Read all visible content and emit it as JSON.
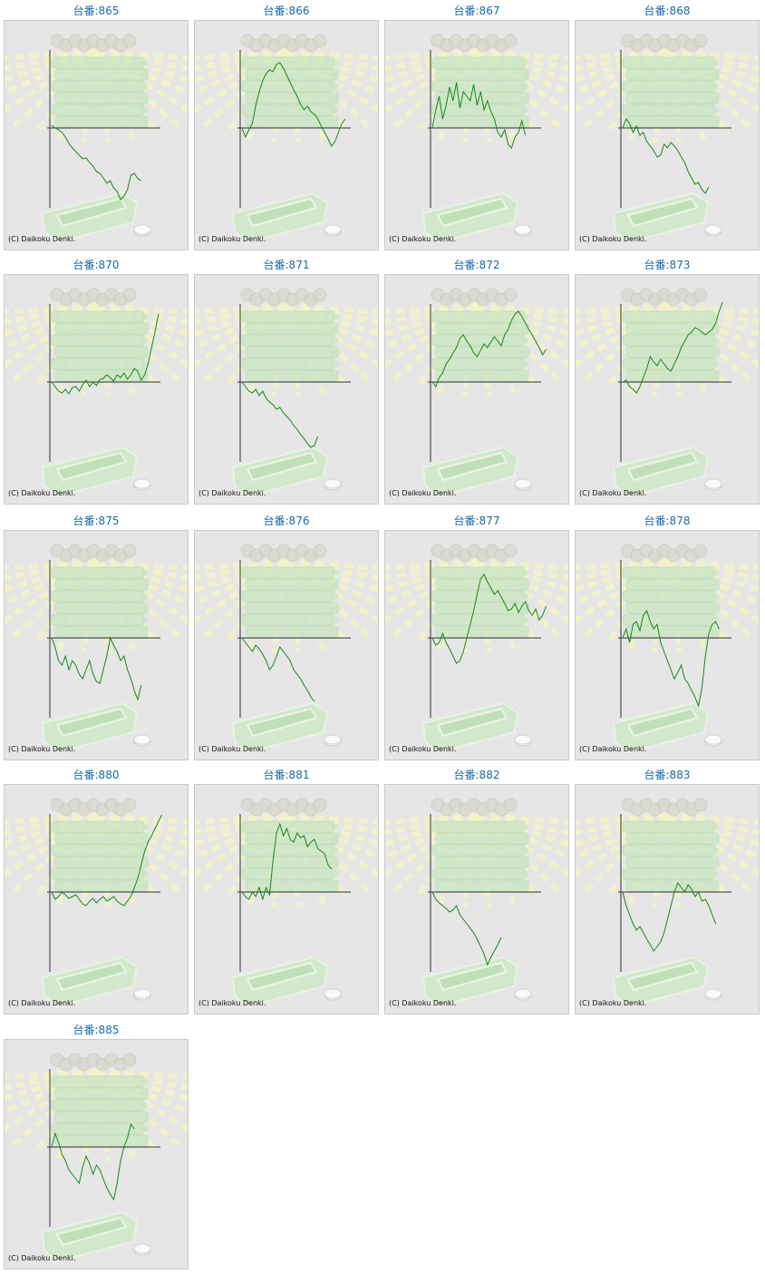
{
  "colors": {
    "title": "#1a6aa8",
    "line": "#138a13",
    "axis": "#333333",
    "bg": "#e6e6e6"
  },
  "machines": [
    {
      "label": "台番:865",
      "copyright": "(C) Daikoku Denki.",
      "chart_data": {
        "type": "line",
        "y": [
          3,
          0,
          -2,
          -5,
          -10,
          -17,
          -22,
          -26,
          -30,
          -34,
          -33,
          -38,
          -42,
          -48,
          -50,
          -55,
          -61,
          -58,
          -66,
          -70,
          -79,
          -75,
          -68,
          -52,
          -50,
          -56,
          -58
        ]
      }
    },
    {
      "label": "台番:866",
      "copyright": "(C) Daikoku Denki.",
      "chart_data": {
        "type": "line",
        "y": [
          0,
          -10,
          -2,
          5,
          25,
          40,
          52,
          60,
          64,
          62,
          70,
          72,
          66,
          58,
          50,
          42,
          35,
          26,
          20,
          24,
          18,
          15,
          10,
          2,
          -5,
          -12,
          -20,
          -15,
          -5,
          5,
          10
        ]
      }
    },
    {
      "label": "台番:867",
      "copyright": "(C) Daikoku Denki.",
      "chart_data": {
        "type": "line",
        "y": [
          0,
          20,
          35,
          10,
          25,
          45,
          30,
          50,
          22,
          40,
          35,
          30,
          48,
          25,
          40,
          20,
          30,
          18,
          10,
          -5,
          -10,
          -2,
          -18,
          -22,
          -10,
          -5,
          8,
          -8
        ]
      }
    },
    {
      "label": "台番:868",
      "copyright": "(C) Daikoku Denki.",
      "chart_data": {
        "type": "line",
        "y": [
          0,
          10,
          5,
          -5,
          2,
          -8,
          -5,
          -15,
          -20,
          -25,
          -32,
          -30,
          -18,
          -22,
          -16,
          -20,
          -25,
          -32,
          -38,
          -48,
          -55,
          -62,
          -60,
          -68,
          -72,
          -65
        ]
      }
    },
    {
      "label": "台番:870",
      "copyright": "(C) Daikoku Denki.",
      "chart_data": {
        "type": "line",
        "y": [
          0,
          -5,
          -10,
          -12,
          -8,
          -13,
          -6,
          -5,
          -10,
          -3,
          2,
          -5,
          0,
          -4,
          3,
          4,
          8,
          5,
          1,
          8,
          5,
          10,
          3,
          8,
          15,
          12,
          2,
          8,
          20,
          38,
          55,
          75
        ]
      }
    },
    {
      "label": "台番:871",
      "copyright": "(C) Daikoku Denki.",
      "chart_data": {
        "type": "line",
        "y": [
          0,
          -5,
          -10,
          -12,
          -8,
          -15,
          -10,
          -18,
          -22,
          -25,
          -30,
          -28,
          -34,
          -38,
          -42,
          -48,
          -52,
          -58,
          -62,
          -68,
          -72,
          -70,
          -60
        ]
      }
    },
    {
      "label": "台番:872",
      "copyright": "(C) Daikoku Denki.",
      "chart_data": {
        "type": "line",
        "y": [
          0,
          -5,
          5,
          10,
          20,
          25,
          32,
          38,
          48,
          52,
          45,
          40,
          32,
          28,
          35,
          42,
          38,
          44,
          50,
          45,
          40,
          52,
          58,
          68,
          75,
          78,
          72,
          65,
          58,
          52,
          45,
          38,
          30,
          36
        ]
      }
    },
    {
      "label": "台番:873",
      "copyright": "(C) Daikoku Denki.",
      "chart_data": {
        "type": "line",
        "y": [
          0,
          2,
          -5,
          -8,
          -12,
          -5,
          5,
          15,
          28,
          22,
          18,
          25,
          20,
          15,
          12,
          20,
          28,
          38,
          45,
          52,
          55,
          60,
          58,
          55,
          52,
          55,
          58,
          65,
          78,
          88
        ]
      }
    },
    {
      "label": "台番:875",
      "copyright": "(C) Daikoku Denki.",
      "chart_data": {
        "type": "line",
        "y": [
          0,
          -10,
          -25,
          -30,
          -20,
          -35,
          -25,
          -30,
          -40,
          -45,
          -35,
          -25,
          -40,
          -48,
          -50,
          -35,
          -20,
          0,
          -8,
          -15,
          -25,
          -20,
          -35,
          -45,
          -58,
          -68,
          -52
        ]
      }
    },
    {
      "label": "台番:876",
      "copyright": "(C) Daikoku Denki.",
      "chart_data": {
        "type": "line",
        "y": [
          0,
          -5,
          -10,
          -15,
          -8,
          -12,
          -18,
          -25,
          -35,
          -30,
          -20,
          -10,
          -15,
          -20,
          -25,
          -35,
          -40,
          -45,
          -52,
          -58,
          -65,
          -70
        ]
      }
    },
    {
      "label": "台番:877",
      "copyright": "(C) Daikoku Denki.",
      "chart_data": {
        "type": "line",
        "y": [
          0,
          -8,
          -5,
          5,
          -5,
          -12,
          -20,
          -28,
          -25,
          -15,
          0,
          15,
          30,
          48,
          65,
          70,
          62,
          55,
          48,
          52,
          45,
          38,
          30,
          32,
          38,
          28,
          35,
          40,
          30,
          25,
          32,
          20,
          25,
          35
        ]
      }
    },
    {
      "label": "台番:878",
      "copyright": "(C) Daikoku Denki.",
      "chart_data": {
        "type": "line",
        "y": [
          0,
          10,
          -5,
          15,
          18,
          8,
          25,
          30,
          18,
          10,
          15,
          -5,
          -15,
          -25,
          -35,
          -45,
          -38,
          -30,
          -45,
          -50,
          -58,
          -65,
          -75,
          -55,
          -20,
          5,
          15,
          18,
          10
        ]
      }
    },
    {
      "label": "台番:880",
      "copyright": "(C) Daikoku Denki.",
      "chart_data": {
        "type": "line",
        "y": [
          0,
          -8,
          -5,
          0,
          -3,
          -7,
          -5,
          -3,
          -8,
          -13,
          -15,
          -10,
          -7,
          -12,
          -8,
          -5,
          -10,
          -8,
          -5,
          -10,
          -13,
          -15,
          -10,
          -5,
          5,
          15,
          30,
          45,
          55,
          62,
          70,
          78,
          85
        ]
      }
    },
    {
      "label": "台番:881",
      "copyright": "(C) Daikoku Denki.",
      "chart_data": {
        "type": "line",
        "y": [
          0,
          -5,
          -8,
          0,
          -5,
          5,
          -8,
          5,
          -3,
          35,
          65,
          75,
          62,
          70,
          58,
          55,
          65,
          60,
          62,
          50,
          55,
          58,
          48,
          45,
          42,
          30,
          25
        ]
      }
    },
    {
      "label": "台番:882",
      "copyright": "(C) Daikoku Denki.",
      "chart_data": {
        "type": "line",
        "y": [
          0,
          -8,
          -12,
          -15,
          -18,
          -22,
          -20,
          -15,
          -25,
          -30,
          -35,
          -40,
          -45,
          -52,
          -60,
          -68,
          -80,
          -72,
          -65,
          -58,
          -50
        ]
      }
    },
    {
      "label": "台番:883",
      "copyright": "(C) Daikoku Denki.",
      "chart_data": {
        "type": "line",
        "y": [
          0,
          -15,
          -25,
          -35,
          -42,
          -38,
          -45,
          -52,
          -58,
          -65,
          -60,
          -55,
          -45,
          -30,
          -15,
          0,
          10,
          5,
          0,
          8,
          3,
          -5,
          0,
          -10,
          -8,
          -15,
          -25,
          -35
        ]
      }
    },
    {
      "label": "台番:885",
      "copyright": "(C) Daikoku Denki.",
      "chart_data": {
        "type": "line",
        "y": [
          0,
          15,
          5,
          -8,
          -15,
          -25,
          -30,
          -35,
          -40,
          -22,
          -10,
          -18,
          -30,
          -20,
          -25,
          -35,
          -45,
          -52,
          -58,
          -40,
          -15,
          0,
          10,
          25,
          20
        ]
      }
    }
  ]
}
